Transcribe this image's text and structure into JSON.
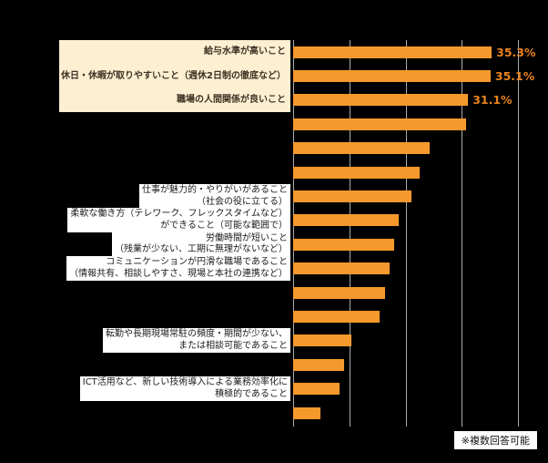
{
  "note": {
    "text": "※複数回答可能"
  },
  "chart_data": {
    "type": "bar",
    "orientation": "horizontal",
    "title": "",
    "xlabel": "",
    "ylabel": "",
    "unit": "%",
    "xlim": [
      0,
      40
    ],
    "gridline_step": 10,
    "grid": true,
    "legend_position": "none",
    "bar_color": "#F5992D",
    "highlight_label_bg": "#FCEFD2",
    "value_label_color": "#E8821E",
    "categories": [
      {
        "lines": [
          "給与水準が高いこと"
        ],
        "highlight": true
      },
      {
        "lines": [
          "休日・休暇が取りやすいこと（週休2日制の徹底など）"
        ],
        "highlight": true
      },
      {
        "lines": [
          "職場の人間関係が良いこと"
        ],
        "highlight": true
      },
      {
        "lines": [],
        "highlight": false
      },
      {
        "lines": [],
        "highlight": false
      },
      {
        "lines": [],
        "highlight": false
      },
      {
        "lines": [
          "仕事が魅力的・やりがいがあること",
          "（社会の役に立てる）"
        ],
        "highlight": false
      },
      {
        "lines": [
          "柔軟な働き方（テレワーク、フレックスタイムなど）",
          "ができること（可能な範囲で）"
        ],
        "highlight": false
      },
      {
        "lines": [
          "労働時間が短いこと",
          "（残業が少ない、工期に無理がないなど）"
        ],
        "highlight": false
      },
      {
        "lines": [
          "コミュニケーションが円滑な職場であること",
          "（情報共有、相談しやすさ、現場と本社の連携など）"
        ],
        "highlight": false
      },
      {
        "lines": [],
        "highlight": false
      },
      {
        "lines": [],
        "highlight": false
      },
      {
        "lines": [
          "転勤や長期現場常駐の頻度・期間が少ない、",
          "または相談可能であること"
        ],
        "highlight": false
      },
      {
        "lines": [],
        "highlight": false
      },
      {
        "lines": [
          "ICT活用など、新しい技術導入による業務効率化に",
          "積極的であること"
        ],
        "highlight": false
      },
      {
        "lines": [],
        "highlight": false
      }
    ],
    "values": [
      35.3,
      35.1,
      31.1,
      30.8,
      24.3,
      22.5,
      21.0,
      18.8,
      18.0,
      17.2,
      16.4,
      15.4,
      10.4,
      9.1,
      8.3,
      4.9
    ],
    "value_labels": [
      "35.3%",
      "35.1%",
      "31.1%",
      "",
      "",
      "",
      "",
      "",
      "",
      "",
      "",
      "",
      "",
      "",
      "",
      ""
    ]
  }
}
